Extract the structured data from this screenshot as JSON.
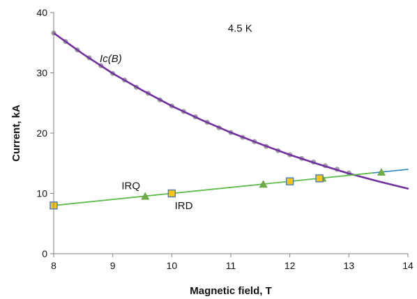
{
  "chart_data": {
    "type": "line",
    "title": "",
    "xlabel": "Magnetic field, T",
    "ylabel": "Current, kA",
    "xlim": [
      8,
      14
    ],
    "ylim": [
      0,
      40
    ],
    "x_ticks": [
      8,
      9,
      10,
      11,
      12,
      13,
      14
    ],
    "y_ticks": [
      0,
      10,
      20,
      30,
      40
    ],
    "x_tick_labels": [
      "8",
      "9",
      "10",
      "11",
      "12",
      "13",
      "14"
    ],
    "y_tick_labels": [
      "0",
      "10",
      "20",
      "30",
      "40"
    ],
    "grid": false,
    "legend": "none",
    "annotations": [
      {
        "text": "4.5 K",
        "x": 10.95,
        "y": 36.8,
        "style": "normal"
      },
      {
        "text": "Ic(B)",
        "x": 8.78,
        "y": 31.8,
        "style": "italic"
      },
      {
        "text": "IRQ",
        "x": 9.15,
        "y": 10.7,
        "style": "normal"
      },
      {
        "text": "IRD",
        "x": 10.05,
        "y": 7.4,
        "style": "normal"
      }
    ],
    "series": [
      {
        "name": "Ic(B)",
        "kind": "fit-line",
        "color": "#7030a0",
        "x": [
          8.0,
          8.5,
          9.0,
          9.5,
          10.0,
          10.5,
          11.0,
          11.5,
          12.0,
          12.5,
          13.0,
          13.5,
          14.0
        ],
        "y": [
          36.6,
          33.1,
          29.9,
          27.1,
          24.5,
          22.2,
          20.1,
          18.2,
          16.4,
          14.8,
          13.3,
          12.0,
          10.8
        ]
      },
      {
        "name": "Ic(B) data",
        "kind": "markers",
        "marker": "circle",
        "color": "#a6a6a6",
        "x": [
          8.0,
          8.2,
          8.4,
          8.6,
          8.8,
          9.0,
          9.2,
          9.4,
          9.6,
          9.8,
          10.0,
          10.2,
          10.4,
          10.6,
          10.8,
          11.0,
          11.2,
          11.4,
          11.6,
          11.8,
          12.0,
          12.2,
          12.4,
          12.6,
          12.8,
          13.0
        ],
        "y": [
          36.6,
          35.2,
          33.8,
          32.5,
          31.2,
          29.9,
          28.8,
          27.6,
          26.6,
          25.5,
          24.5,
          23.6,
          22.7,
          21.8,
          20.9,
          20.1,
          19.3,
          18.6,
          17.8,
          17.1,
          16.4,
          15.8,
          15.2,
          14.6,
          14.0,
          13.4
        ]
      },
      {
        "name": "IRQ",
        "kind": "line",
        "color": "#2e86c1",
        "x": [
          8.0,
          14.0
        ],
        "y": [
          8.0,
          14.0
        ]
      },
      {
        "name": "IRQ data",
        "kind": "markers",
        "marker": "triangle",
        "color": "#70ad47",
        "x": [
          8.0,
          9.55,
          11.55,
          12.55,
          13.55
        ],
        "y": [
          7.9,
          9.5,
          11.5,
          12.5,
          13.5
        ]
      },
      {
        "name": "IRD",
        "kind": "line",
        "color": "#5bbf3c",
        "x": [
          8.0,
          13.4
        ],
        "y": [
          8.0,
          13.4
        ]
      },
      {
        "name": "IRD data",
        "kind": "markers",
        "marker": "square",
        "color": "#f5c518",
        "edge": "#4a7ebb",
        "x": [
          8.0,
          10.0,
          12.0,
          12.5
        ],
        "y": [
          8.0,
          10.0,
          12.0,
          12.5
        ]
      }
    ]
  }
}
